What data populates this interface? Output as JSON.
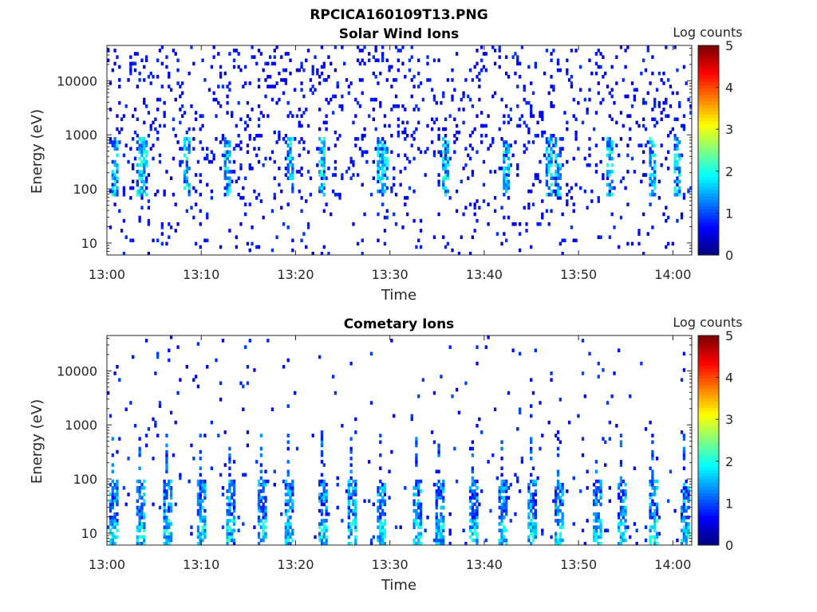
{
  "figure_title": "RPCICA160109T13.PNG",
  "chart_data": [
    {
      "type": "heatmap",
      "title": "Solar Wind Ions",
      "xlabel": "Time",
      "ylabel": "Energy (eV)",
      "y_scale": "log",
      "ylim": [
        6,
        45000
      ],
      "xlim": [
        "13:00",
        "14:02"
      ],
      "xticks": [
        "13:00",
        "13:10",
        "13:20",
        "13:30",
        "13:40",
        "13:50",
        "14:00"
      ],
      "yticks": [
        "10",
        "100",
        "1000",
        "10000"
      ],
      "colorbar": {
        "label": "Log counts",
        "range": [
          0,
          5
        ],
        "ticks": [
          "0",
          "1",
          "2",
          "3",
          "4",
          "5"
        ],
        "colormap": "jet"
      },
      "burst_times_min": [
        0.5,
        3.0,
        3.5,
        8.2,
        12.5,
        19.0,
        22.5,
        28.5,
        29.0,
        35.5,
        42.0,
        46.5,
        47.5,
        53.0,
        57.5,
        60.0
      ],
      "low_energy_counts_level": 1,
      "high_energy_scatter_level": 0.5
    },
    {
      "type": "heatmap",
      "title": "Cometary Ions",
      "xlabel": "Time",
      "ylabel": "Energy (eV)",
      "y_scale": "log",
      "ylim": [
        6,
        45000
      ],
      "xlim": [
        "13:00",
        "14:02"
      ],
      "xticks": [
        "13:00",
        "13:10",
        "13:20",
        "13:30",
        "13:40",
        "13:50",
        "14:00"
      ],
      "yticks": [
        "10",
        "100",
        "1000",
        "10000"
      ],
      "colorbar": {
        "label": "Log counts",
        "range": [
          0,
          5
        ],
        "ticks": [
          "0",
          "1",
          "2",
          "3",
          "4",
          "5"
        ],
        "colormap": "jet"
      },
      "burst_times_min": [
        0.3,
        3.2,
        6.0,
        9.5,
        12.7,
        16.0,
        18.8,
        22.5,
        25.5,
        28.5,
        32.5,
        34.8,
        38.5,
        41.5,
        44.5,
        47.5,
        51.5,
        54.2,
        57.5,
        60.8
      ],
      "burst_peak_level": 2.2,
      "burst_energy_range": [
        6,
        400
      ]
    }
  ]
}
